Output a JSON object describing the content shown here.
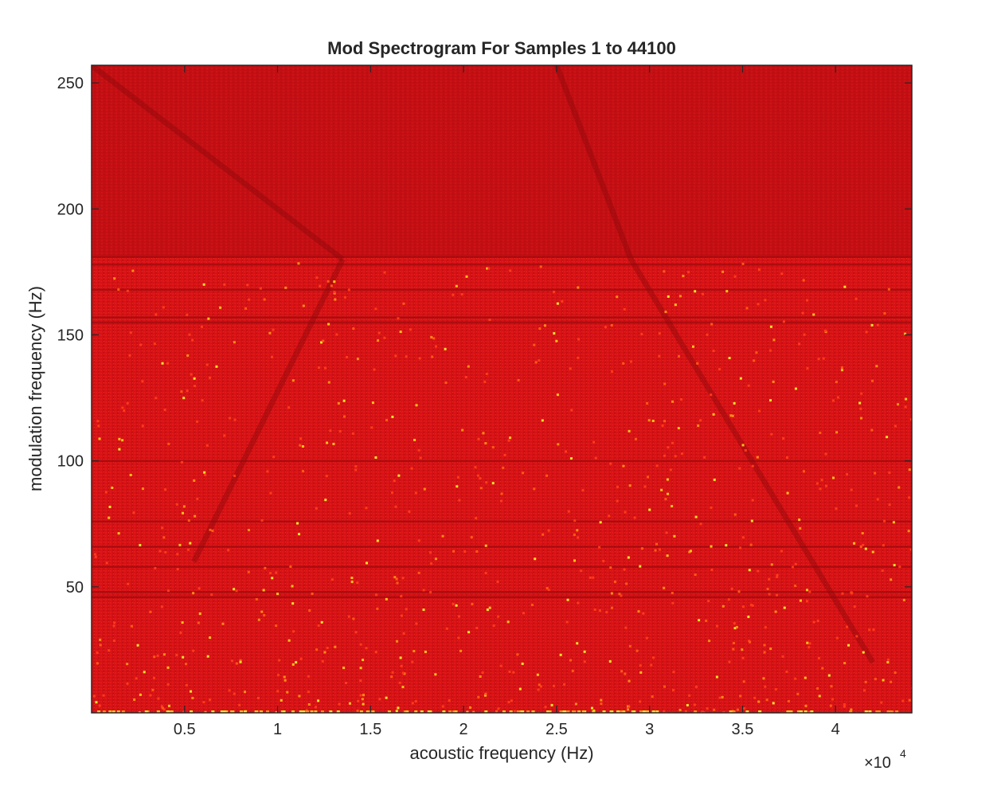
{
  "chart_data": {
    "type": "heatmap",
    "title": "Mod Spectrogram For Samples 1 to 44100",
    "xlabel": "acoustic frequency (Hz)",
    "ylabel": "modulation frequency (Hz)",
    "x_exponent_label": "×10",
    "x_exponent_power": "4",
    "xlim": [
      0,
      44100
    ],
    "ylim": [
      0,
      257
    ],
    "x_ticks": [
      {
        "value": 0.5,
        "label": "0.5"
      },
      {
        "value": 1,
        "label": "1"
      },
      {
        "value": 1.5,
        "label": "1.5"
      },
      {
        "value": 2,
        "label": "2"
      },
      {
        "value": 2.5,
        "label": "2.5"
      },
      {
        "value": 3,
        "label": "3"
      },
      {
        "value": 3.5,
        "label": "3.5"
      },
      {
        "value": 4,
        "label": "4"
      }
    ],
    "y_ticks": [
      {
        "value": 50,
        "label": "50"
      },
      {
        "value": 100,
        "label": "100"
      },
      {
        "value": 150,
        "label": "150"
      },
      {
        "value": 200,
        "label": "200"
      },
      {
        "value": 250,
        "label": "250"
      }
    ],
    "colormap": "jet",
    "dominant_color": "#d91216",
    "grid": false,
    "notes_visible": {
      "dark_diagonal_ridges": [
        {
          "from": [
            0,
            257
          ],
          "to": [
            13500,
            180
          ]
        },
        {
          "from": [
            5500,
            60
          ],
          "to": [
            13500,
            180
          ]
        },
        {
          "from": [
            25000,
            257
          ],
          "to": [
            29000,
            180
          ]
        },
        {
          "from": [
            29000,
            180
          ],
          "to": [
            42000,
            20
          ]
        }
      ],
      "dark_horizontal_bands_y": [
        181,
        178,
        168,
        157,
        155,
        100,
        76,
        66,
        58,
        48,
        46
      ],
      "bright_region": "low modulation frequency (y < 30)"
    }
  }
}
